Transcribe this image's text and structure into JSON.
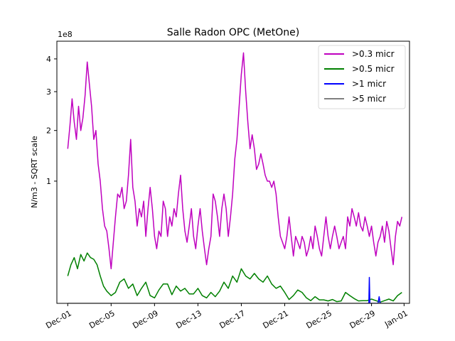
{
  "chart_data": {
    "type": "line",
    "title": "Salle Radon OPC (MetOne)",
    "xlabel": "",
    "ylabel": "N/m3 - SQRT scale",
    "yscale": "sqrt",
    "y_offset_text": "1e8",
    "ylim": [
      0,
      4.6
    ],
    "y_ticks": [
      {
        "value": 1,
        "label": "1"
      },
      {
        "value": 2,
        "label": "2"
      },
      {
        "value": 3,
        "label": "3"
      },
      {
        "value": 4,
        "label": "4"
      }
    ],
    "xlim": [
      -1.0,
      31.5
    ],
    "x_ticks": [
      {
        "day": 0,
        "label": "Dec-01"
      },
      {
        "day": 4,
        "label": "Dec-05"
      },
      {
        "day": 8,
        "label": "Dec-09"
      },
      {
        "day": 12,
        "label": "Dec-13"
      },
      {
        "day": 16,
        "label": "Dec-17"
      },
      {
        "day": 20,
        "label": "Dec-21"
      },
      {
        "day": 24,
        "label": "Dec-25"
      },
      {
        "day": 28,
        "label": "Dec-29"
      },
      {
        "day": 31,
        "label": "Jan-01"
      }
    ],
    "legend_position": "top-right",
    "series": [
      {
        "name": ">0.3 micr",
        "color": "#bf00bf",
        "points": [
          [
            0.0,
            1.6
          ],
          [
            0.2,
            2.1
          ],
          [
            0.4,
            2.8
          ],
          [
            0.6,
            2.2
          ],
          [
            0.8,
            1.8
          ],
          [
            1.0,
            2.6
          ],
          [
            1.2,
            2.0
          ],
          [
            1.4,
            2.3
          ],
          [
            1.6,
            2.9
          ],
          [
            1.8,
            3.9
          ],
          [
            2.0,
            3.2
          ],
          [
            2.2,
            2.6
          ],
          [
            2.4,
            1.8
          ],
          [
            2.6,
            2.0
          ],
          [
            2.8,
            1.3
          ],
          [
            3.0,
            1.0
          ],
          [
            3.2,
            0.6
          ],
          [
            3.4,
            0.4
          ],
          [
            3.6,
            0.35
          ],
          [
            3.8,
            0.2
          ],
          [
            4.0,
            0.08
          ],
          [
            4.2,
            0.25
          ],
          [
            4.4,
            0.5
          ],
          [
            4.6,
            0.8
          ],
          [
            4.8,
            0.75
          ],
          [
            5.0,
            0.9
          ],
          [
            5.2,
            0.6
          ],
          [
            5.4,
            0.7
          ],
          [
            5.6,
            1.1
          ],
          [
            5.8,
            1.8
          ],
          [
            6.0,
            0.9
          ],
          [
            6.2,
            0.7
          ],
          [
            6.4,
            0.4
          ],
          [
            6.6,
            0.6
          ],
          [
            6.8,
            0.5
          ],
          [
            7.0,
            0.7
          ],
          [
            7.2,
            0.3
          ],
          [
            7.4,
            0.6
          ],
          [
            7.6,
            0.9
          ],
          [
            7.8,
            0.6
          ],
          [
            8.0,
            0.3
          ],
          [
            8.2,
            0.2
          ],
          [
            8.4,
            0.35
          ],
          [
            8.6,
            0.3
          ],
          [
            8.8,
            0.7
          ],
          [
            9.0,
            0.6
          ],
          [
            9.2,
            0.3
          ],
          [
            9.4,
            0.5
          ],
          [
            9.6,
            0.4
          ],
          [
            9.8,
            0.6
          ],
          [
            10.0,
            0.5
          ],
          [
            10.2,
            0.8
          ],
          [
            10.4,
            1.1
          ],
          [
            10.6,
            0.6
          ],
          [
            10.8,
            0.35
          ],
          [
            11.0,
            0.25
          ],
          [
            11.2,
            0.4
          ],
          [
            11.4,
            0.6
          ],
          [
            11.6,
            0.3
          ],
          [
            11.8,
            0.2
          ],
          [
            12.0,
            0.4
          ],
          [
            12.2,
            0.6
          ],
          [
            12.4,
            0.35
          ],
          [
            12.6,
            0.2
          ],
          [
            12.8,
            0.1
          ],
          [
            13.0,
            0.2
          ],
          [
            13.2,
            0.3
          ],
          [
            13.4,
            0.8
          ],
          [
            13.6,
            0.7
          ],
          [
            13.8,
            0.5
          ],
          [
            14.0,
            0.3
          ],
          [
            14.2,
            0.6
          ],
          [
            14.4,
            0.8
          ],
          [
            14.6,
            0.6
          ],
          [
            14.8,
            0.3
          ],
          [
            15.0,
            0.5
          ],
          [
            15.2,
            0.8
          ],
          [
            15.4,
            1.4
          ],
          [
            15.6,
            1.8
          ],
          [
            15.8,
            2.6
          ],
          [
            16.0,
            3.5
          ],
          [
            16.2,
            4.2
          ],
          [
            16.4,
            3.0
          ],
          [
            16.6,
            2.2
          ],
          [
            16.8,
            1.6
          ],
          [
            17.0,
            1.9
          ],
          [
            17.2,
            1.6
          ],
          [
            17.4,
            1.2
          ],
          [
            17.6,
            1.3
          ],
          [
            17.8,
            1.5
          ],
          [
            18.0,
            1.3
          ],
          [
            18.2,
            1.1
          ],
          [
            18.4,
            1.0
          ],
          [
            18.6,
            1.0
          ],
          [
            18.8,
            0.9
          ],
          [
            19.0,
            1.0
          ],
          [
            19.2,
            0.8
          ],
          [
            19.4,
            0.5
          ],
          [
            19.6,
            0.3
          ],
          [
            19.8,
            0.25
          ],
          [
            20.0,
            0.2
          ],
          [
            20.2,
            0.3
          ],
          [
            20.4,
            0.5
          ],
          [
            20.6,
            0.3
          ],
          [
            20.8,
            0.15
          ],
          [
            21.0,
            0.3
          ],
          [
            21.2,
            0.25
          ],
          [
            21.4,
            0.2
          ],
          [
            21.6,
            0.3
          ],
          [
            21.8,
            0.25
          ],
          [
            22.0,
            0.15
          ],
          [
            22.2,
            0.2
          ],
          [
            22.4,
            0.3
          ],
          [
            22.6,
            0.2
          ],
          [
            22.8,
            0.4
          ],
          [
            23.0,
            0.3
          ],
          [
            23.2,
            0.2
          ],
          [
            23.4,
            0.15
          ],
          [
            23.6,
            0.3
          ],
          [
            23.8,
            0.5
          ],
          [
            24.0,
            0.3
          ],
          [
            24.2,
            0.2
          ],
          [
            24.4,
            0.3
          ],
          [
            24.6,
            0.4
          ],
          [
            24.8,
            0.3
          ],
          [
            25.0,
            0.2
          ],
          [
            25.2,
            0.25
          ],
          [
            25.4,
            0.3
          ],
          [
            25.6,
            0.2
          ],
          [
            25.8,
            0.5
          ],
          [
            26.0,
            0.4
          ],
          [
            26.2,
            0.6
          ],
          [
            26.4,
            0.5
          ],
          [
            26.6,
            0.4
          ],
          [
            26.8,
            0.55
          ],
          [
            27.0,
            0.4
          ],
          [
            27.2,
            0.35
          ],
          [
            27.4,
            0.5
          ],
          [
            27.6,
            0.4
          ],
          [
            27.8,
            0.3
          ],
          [
            28.0,
            0.4
          ],
          [
            28.2,
            0.25
          ],
          [
            28.4,
            0.15
          ],
          [
            28.6,
            0.25
          ],
          [
            28.8,
            0.3
          ],
          [
            29.0,
            0.4
          ],
          [
            29.2,
            0.25
          ],
          [
            29.4,
            0.45
          ],
          [
            29.6,
            0.35
          ],
          [
            29.8,
            0.2
          ],
          [
            30.0,
            0.1
          ],
          [
            30.2,
            0.3
          ],
          [
            30.4,
            0.45
          ],
          [
            30.6,
            0.4
          ],
          [
            30.8,
            0.5
          ]
        ]
      },
      {
        "name": ">0.5 micr",
        "color": "#008000",
        "points": [
          [
            0.0,
            0.05
          ],
          [
            0.3,
            0.1
          ],
          [
            0.6,
            0.14
          ],
          [
            0.9,
            0.08
          ],
          [
            1.2,
            0.16
          ],
          [
            1.5,
            0.12
          ],
          [
            1.8,
            0.17
          ],
          [
            2.1,
            0.14
          ],
          [
            2.4,
            0.13
          ],
          [
            2.7,
            0.1
          ],
          [
            3.0,
            0.05
          ],
          [
            3.3,
            0.02
          ],
          [
            3.6,
            0.01
          ],
          [
            4.0,
            0.004
          ],
          [
            4.4,
            0.008
          ],
          [
            4.8,
            0.03
          ],
          [
            5.2,
            0.04
          ],
          [
            5.6,
            0.015
          ],
          [
            6.0,
            0.025
          ],
          [
            6.4,
            0.004
          ],
          [
            6.8,
            0.015
          ],
          [
            7.2,
            0.03
          ],
          [
            7.6,
            0.004
          ],
          [
            8.0,
            0.002
          ],
          [
            8.4,
            0.012
          ],
          [
            8.8,
            0.025
          ],
          [
            9.2,
            0.025
          ],
          [
            9.6,
            0.005
          ],
          [
            10.0,
            0.02
          ],
          [
            10.4,
            0.01
          ],
          [
            10.8,
            0.015
          ],
          [
            11.2,
            0.006
          ],
          [
            11.6,
            0.006
          ],
          [
            12.0,
            0.015
          ],
          [
            12.4,
            0.004
          ],
          [
            12.8,
            0.002
          ],
          [
            13.2,
            0.008
          ],
          [
            13.6,
            0.003
          ],
          [
            14.0,
            0.01
          ],
          [
            14.4,
            0.03
          ],
          [
            14.8,
            0.015
          ],
          [
            15.2,
            0.05
          ],
          [
            15.6,
            0.03
          ],
          [
            16.0,
            0.08
          ],
          [
            16.4,
            0.05
          ],
          [
            16.8,
            0.04
          ],
          [
            17.2,
            0.06
          ],
          [
            17.6,
            0.04
          ],
          [
            18.0,
            0.03
          ],
          [
            18.4,
            0.05
          ],
          [
            18.8,
            0.025
          ],
          [
            19.2,
            0.015
          ],
          [
            19.6,
            0.02
          ],
          [
            20.0,
            0.008
          ],
          [
            20.4,
            0.001
          ],
          [
            20.8,
            0.004
          ],
          [
            21.2,
            0.012
          ],
          [
            21.6,
            0.008
          ],
          [
            22.0,
            0.002
          ],
          [
            22.4,
            0.0005
          ],
          [
            22.8,
            0.003
          ],
          [
            23.2,
            0.0008
          ],
          [
            23.6,
            0.0008
          ],
          [
            24.0,
            0.0004
          ],
          [
            24.4,
            0.001
          ],
          [
            24.8,
            0.0002
          ],
          [
            25.2,
            0.0004
          ],
          [
            25.6,
            0.008
          ],
          [
            26.0,
            0.004
          ],
          [
            26.4,
            0.0015
          ],
          [
            26.8,
            0.0004
          ],
          [
            27.2,
            0.0005
          ],
          [
            27.6,
            0.0005
          ],
          [
            28.0,
            0.0012
          ],
          [
            28.4,
            0.0005
          ],
          [
            28.8,
            0.0001
          ],
          [
            29.2,
            0.0005
          ],
          [
            29.6,
            0.0012
          ],
          [
            30.0,
            0.0004
          ],
          [
            30.4,
            0.004
          ],
          [
            30.8,
            0.008
          ]
        ]
      },
      {
        "name": ">1 micr",
        "color": "#0000ff",
        "points": [
          [
            27.6,
            0.0
          ],
          [
            27.75,
            0.0
          ],
          [
            27.8,
            0.045
          ],
          [
            27.85,
            0.0
          ],
          [
            28.6,
            0.0
          ],
          [
            28.7,
            0.003
          ],
          [
            28.8,
            0.0
          ]
        ]
      },
      {
        "name": ">5 micr",
        "color": "#808080",
        "points": [
          [
            0.0,
            0.0
          ],
          [
            31.0,
            0.0
          ]
        ]
      }
    ]
  }
}
